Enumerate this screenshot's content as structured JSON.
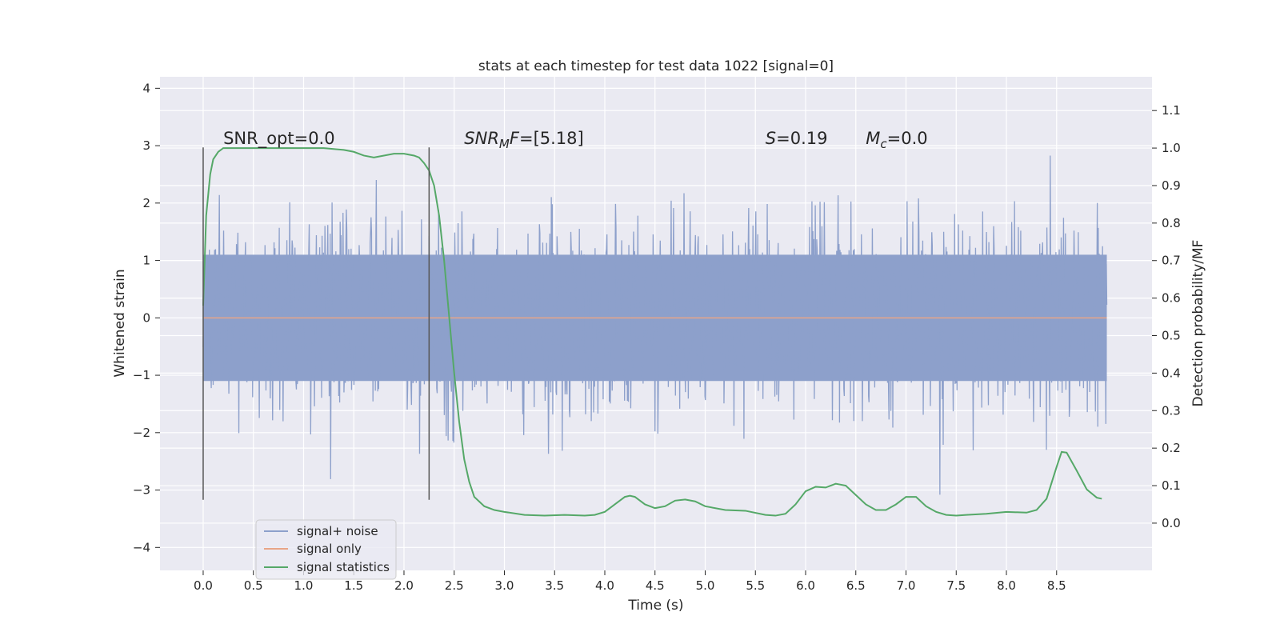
{
  "chart_data": {
    "type": "line",
    "title": "stats at each timestep for test data 1022 [signal=0]",
    "xlabel": "Time (s)",
    "ylabel": "Whitened strain",
    "y2label": "Detection probability/MF",
    "xlim": [
      -0.43,
      9.45
    ],
    "ylim": [
      -4.4,
      4.2
    ],
    "y2lim": [
      -0.126,
      1.19
    ],
    "x_ticks": [
      0.0,
      0.5,
      1.0,
      1.5,
      2.0,
      2.5,
      3.0,
      3.5,
      4.0,
      4.5,
      5.0,
      5.5,
      6.0,
      6.5,
      7.0,
      7.5,
      8.0,
      8.5
    ],
    "x_tick_labels": [
      "0.0",
      "0.5",
      "1.0",
      "1.5",
      "2.0",
      "2.5",
      "3.0",
      "3.5",
      "4.0",
      "4.5",
      "5.0",
      "5.5",
      "6.0",
      "6.5",
      "7.0",
      "7.5",
      "8.0",
      "8.5"
    ],
    "y_ticks": [
      4,
      3,
      2,
      1,
      0,
      -1,
      -2,
      -3,
      -4
    ],
    "y_tick_labels": [
      "4",
      "3",
      "2",
      "1",
      "0",
      "−1",
      "−2",
      "−3",
      "−4"
    ],
    "y2_ticks": [
      1.1,
      1.0,
      0.9,
      0.8,
      0.7,
      0.6,
      0.5,
      0.4,
      0.3,
      0.2,
      0.1,
      0.0
    ],
    "y2_tick_labels": [
      "1.1",
      "1.0",
      "0.9",
      "0.8",
      "0.7",
      "0.6",
      "0.5",
      "0.4",
      "0.3",
      "0.2",
      "0.1",
      "0.0"
    ],
    "grid": true,
    "legend_placement": "lower-left",
    "vlines": [
      {
        "x": 0.0,
        "y_range": [
          -3.17,
          2.97
        ]
      },
      {
        "x": 2.25,
        "y_range": [
          -3.17,
          2.97
        ]
      }
    ],
    "annotations": [
      {
        "text_prefix": "SNR_opt=0.0",
        "text_sub": "",
        "text_suffix": "",
        "x": 0.2,
        "y": 3.03
      },
      {
        "text_prefix": "SNR",
        "text_sub": "M",
        "text_suffix": "F=[5.18]",
        "x": 2.6,
        "y": 3.03
      },
      {
        "text_prefix": "S",
        "text_sub": "",
        "text_suffix": "=0.19",
        "x": 5.6,
        "y": 3.03
      },
      {
        "text_prefix": "M",
        "text_sub": "c",
        "text_suffix": "=0.0",
        "x": 6.6,
        "y": 3.03
      }
    ],
    "series": [
      {
        "name": "signal+ noise",
        "color": "#8da0cb",
        "kind": "noise",
        "x_range": [
          0.0,
          9.0
        ],
        "body_range": [
          -1.1,
          1.1
        ],
        "envelope_range": [
          -4.0,
          3.8
        ],
        "std": 0.8
      },
      {
        "name": "signal only",
        "color": "#e8a587",
        "kind": "line",
        "x": [
          0.0,
          9.0
        ],
        "y": [
          0.0,
          0.0
        ]
      },
      {
        "name": "signal statistics",
        "color": "#55a868",
        "kind": "line",
        "axis": "right",
        "x": [
          0.0,
          0.03,
          0.07,
          0.1,
          0.15,
          0.2,
          0.3,
          0.5,
          1.0,
          1.2,
          1.4,
          1.5,
          1.6,
          1.7,
          1.8,
          1.9,
          2.0,
          2.1,
          2.15,
          2.2,
          2.25,
          2.3,
          2.35,
          2.4,
          2.45,
          2.5,
          2.55,
          2.6,
          2.65,
          2.7,
          2.8,
          2.9,
          3.0,
          3.2,
          3.4,
          3.6,
          3.8,
          3.9,
          4.0,
          4.1,
          4.2,
          4.25,
          4.3,
          4.4,
          4.5,
          4.6,
          4.7,
          4.8,
          4.9,
          5.0,
          5.2,
          5.4,
          5.6,
          5.7,
          5.8,
          5.9,
          6.0,
          6.1,
          6.2,
          6.3,
          6.4,
          6.5,
          6.6,
          6.7,
          6.8,
          6.9,
          7.0,
          7.1,
          7.2,
          7.3,
          7.4,
          7.5,
          7.6,
          7.8,
          8.0,
          8.2,
          8.3,
          8.4,
          8.5,
          8.55,
          8.6,
          8.7,
          8.8,
          8.9,
          8.95
        ],
        "y": [
          0.58,
          0.82,
          0.93,
          0.97,
          0.99,
          1.0,
          1.0,
          1.0,
          1.0,
          1.0,
          0.995,
          0.99,
          0.98,
          0.975,
          0.98,
          0.985,
          0.985,
          0.98,
          0.975,
          0.96,
          0.94,
          0.9,
          0.82,
          0.7,
          0.55,
          0.4,
          0.27,
          0.17,
          0.11,
          0.07,
          0.045,
          0.035,
          0.03,
          0.022,
          0.02,
          0.022,
          0.02,
          0.022,
          0.03,
          0.05,
          0.07,
          0.073,
          0.07,
          0.05,
          0.04,
          0.045,
          0.06,
          0.063,
          0.058,
          0.045,
          0.035,
          0.033,
          0.022,
          0.02,
          0.025,
          0.05,
          0.085,
          0.097,
          0.095,
          0.105,
          0.1,
          0.075,
          0.05,
          0.035,
          0.035,
          0.05,
          0.07,
          0.07,
          0.045,
          0.03,
          0.022,
          0.02,
          0.022,
          0.025,
          0.03,
          0.028,
          0.035,
          0.065,
          0.15,
          0.19,
          0.188,
          0.14,
          0.09,
          0.068,
          0.065
        ]
      }
    ]
  }
}
